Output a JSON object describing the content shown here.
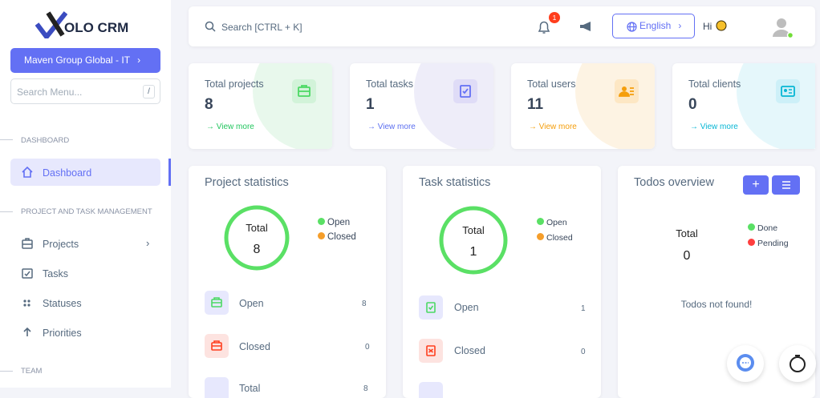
{
  "sidebar": {
    "logo": "OLO CRM",
    "workspace": "Maven Group Global - IT",
    "search_placeholder": "Search Menu...",
    "search_shortcut": "/",
    "sections": [
      {
        "title": "DASHBOARD",
        "items": [
          "Dashboard"
        ]
      },
      {
        "title": "PROJECT AND TASK MANAGEMENT",
        "items": [
          "Projects",
          "Tasks",
          "Statuses",
          "Priorities"
        ]
      },
      {
        "title": "TEAM",
        "items": []
      }
    ]
  },
  "topbar": {
    "search": "Search [CTRL + K]",
    "notifications": 1,
    "language": "English",
    "greeting": "Hi"
  },
  "stats": [
    {
      "label": "Total projects",
      "value": 8,
      "link": "View more"
    },
    {
      "label": "Total tasks",
      "value": 1,
      "link": "View more"
    },
    {
      "label": "Total users",
      "value": 11,
      "link": "View more"
    },
    {
      "label": "Total clients",
      "value": 0,
      "link": "View more"
    }
  ],
  "project_statistics": {
    "title": "Project statistics",
    "center_label": "Total",
    "total": 8,
    "legend": [
      "Open",
      "Closed"
    ],
    "rows": [
      {
        "label": "Open",
        "value": 8
      },
      {
        "label": "Closed",
        "value": 0
      },
      {
        "label": "Total",
        "value": 8
      }
    ]
  },
  "task_statistics": {
    "title": "Task statistics",
    "center_label": "Total",
    "total": 1,
    "legend": [
      "Open",
      "Closed"
    ],
    "rows": [
      {
        "label": "Open",
        "value": 1
      },
      {
        "label": "Closed",
        "value": 0
      }
    ]
  },
  "todos": {
    "title": "Todos overview",
    "center_label": "Total",
    "total": 0,
    "legend": [
      "Done",
      "Pending"
    ],
    "empty": "Todos not found!"
  }
}
